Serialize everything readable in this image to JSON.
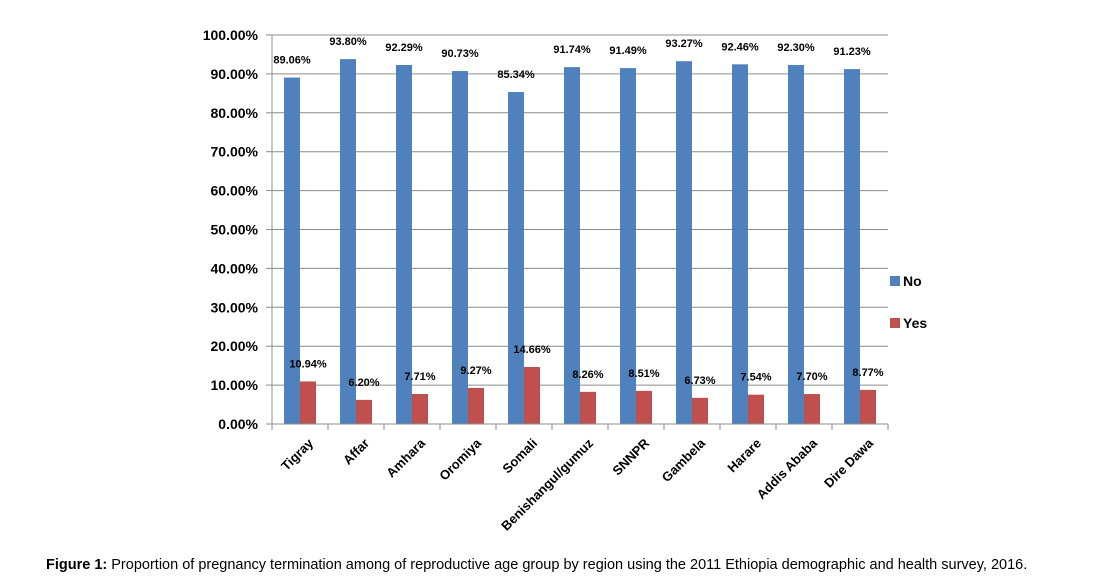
{
  "chart_data": {
    "type": "bar",
    "categories": [
      "Tigray",
      "Affar",
      "Amhara",
      "Oromiya",
      "Somali",
      "Benishangul/gumuz",
      "SNNPR",
      "Gambela",
      "Harare",
      "Addis Ababa",
      "Dire Dawa"
    ],
    "series": [
      {
        "name": "No",
        "color": "#4f81bd",
        "values": [
          89.06,
          93.8,
          92.29,
          90.73,
          85.34,
          91.74,
          91.49,
          93.27,
          92.46,
          92.3,
          91.23
        ],
        "labels": [
          "89.06%",
          "93.80%",
          "92.29%",
          "90.73%",
          "85.34%",
          "91.74%",
          "91.49%",
          "93.27%",
          "92.46%",
          "92.30%",
          "91.23%"
        ]
      },
      {
        "name": "Yes",
        "color": "#c0504d",
        "values": [
          10.94,
          6.2,
          7.71,
          9.27,
          14.66,
          8.26,
          8.51,
          6.73,
          7.54,
          7.7,
          8.77
        ],
        "labels": [
          "10.94%",
          "6.20%",
          "7.71%",
          "9.27%",
          "14.66%",
          "8.26%",
          "8.51%",
          "6.73%",
          "7.54%",
          "7.70%",
          "8.77%"
        ]
      }
    ],
    "ylim": [
      0,
      100
    ],
    "yticks": [
      "0.00%",
      "10.00%",
      "20.00%",
      "30.00%",
      "40.00%",
      "50.00%",
      "60.00%",
      "70.00%",
      "80.00%",
      "90.00%",
      "100.00%"
    ],
    "grid": true,
    "legend_position": "right"
  },
  "caption": {
    "label": "Figure 1:",
    "text": " Proportion of pregnancy termination among of reproductive age group by region using the 2011 Ethiopia demographic and health survey, 2016."
  }
}
